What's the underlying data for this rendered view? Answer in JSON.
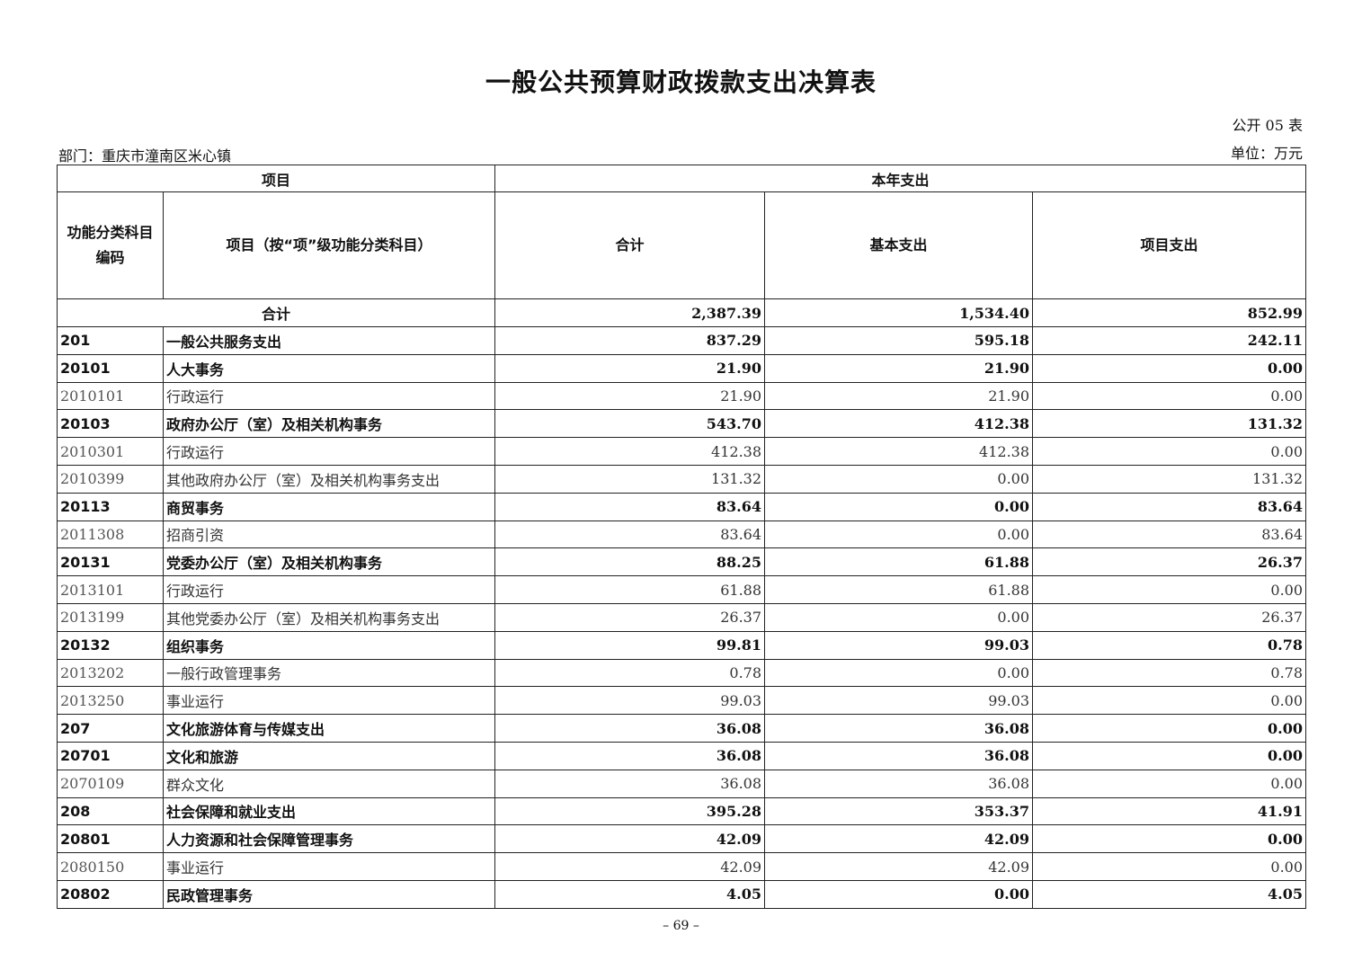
{
  "title": "一般公共预算财政拨款支出决算表",
  "form_no": "公开 05 表",
  "department": "部门：重庆市潼南区米心镇",
  "unit": "单位：万元",
  "header": {
    "item": "项目",
    "current_year": "本年支出",
    "code": "功能分类科目编码",
    "name": "项目（按“项”级功能分类科目）",
    "total": "合计",
    "basic": "基本支出",
    "project": "项目支出"
  },
  "total_row": {
    "label": "合计",
    "total": "2,387.39",
    "basic": "1,534.40",
    "project": "852.99"
  },
  "rows": [
    {
      "code": "201",
      "name": "一般公共服务支出",
      "total": "837.29",
      "basic": "595.18",
      "project": "242.11",
      "bold": true
    },
    {
      "code": "20101",
      "name": "人大事务",
      "total": "21.90",
      "basic": "21.90",
      "project": "0.00",
      "bold": true
    },
    {
      "code": "2010101",
      "name": "行政运行",
      "total": "21.90",
      "basic": "21.90",
      "project": "0.00",
      "bold": false
    },
    {
      "code": "20103",
      "name": "政府办公厅（室）及相关机构事务",
      "total": "543.70",
      "basic": "412.38",
      "project": "131.32",
      "bold": true
    },
    {
      "code": "2010301",
      "name": "行政运行",
      "total": "412.38",
      "basic": "412.38",
      "project": "0.00",
      "bold": false
    },
    {
      "code": "2010399",
      "name": "其他政府办公厅（室）及相关机构事务支出",
      "total": "131.32",
      "basic": "0.00",
      "project": "131.32",
      "bold": false
    },
    {
      "code": "20113",
      "name": "商贸事务",
      "total": "83.64",
      "basic": "0.00",
      "project": "83.64",
      "bold": true
    },
    {
      "code": "2011308",
      "name": "招商引资",
      "total": "83.64",
      "basic": "0.00",
      "project": "83.64",
      "bold": false
    },
    {
      "code": "20131",
      "name": "党委办公厅（室）及相关机构事务",
      "total": "88.25",
      "basic": "61.88",
      "project": "26.37",
      "bold": true
    },
    {
      "code": "2013101",
      "name": "行政运行",
      "total": "61.88",
      "basic": "61.88",
      "project": "0.00",
      "bold": false
    },
    {
      "code": "2013199",
      "name": "其他党委办公厅（室）及相关机构事务支出",
      "total": "26.37",
      "basic": "0.00",
      "project": "26.37",
      "bold": false
    },
    {
      "code": "20132",
      "name": "组织事务",
      "total": "99.81",
      "basic": "99.03",
      "project": "0.78",
      "bold": true
    },
    {
      "code": "2013202",
      "name": "一般行政管理事务",
      "total": "0.78",
      "basic": "0.00",
      "project": "0.78",
      "bold": false
    },
    {
      "code": "2013250",
      "name": "事业运行",
      "total": "99.03",
      "basic": "99.03",
      "project": "0.00",
      "bold": false
    },
    {
      "code": "207",
      "name": "文化旅游体育与传媒支出",
      "total": "36.08",
      "basic": "36.08",
      "project": "0.00",
      "bold": true
    },
    {
      "code": "20701",
      "name": "文化和旅游",
      "total": "36.08",
      "basic": "36.08",
      "project": "0.00",
      "bold": true
    },
    {
      "code": "2070109",
      "name": "群众文化",
      "total": "36.08",
      "basic": "36.08",
      "project": "0.00",
      "bold": false
    },
    {
      "code": "208",
      "name": "社会保障和就业支出",
      "total": "395.28",
      "basic": "353.37",
      "project": "41.91",
      "bold": true
    },
    {
      "code": "20801",
      "name": "人力资源和社会保障管理事务",
      "total": "42.09",
      "basic": "42.09",
      "project": "0.00",
      "bold": true
    },
    {
      "code": "2080150",
      "name": "事业运行",
      "total": "42.09",
      "basic": "42.09",
      "project": "0.00",
      "bold": false
    },
    {
      "code": "20802",
      "name": "民政管理事务",
      "total": "4.05",
      "basic": "0.00",
      "project": "4.05",
      "bold": true
    }
  ],
  "page_number": "– 69 –"
}
